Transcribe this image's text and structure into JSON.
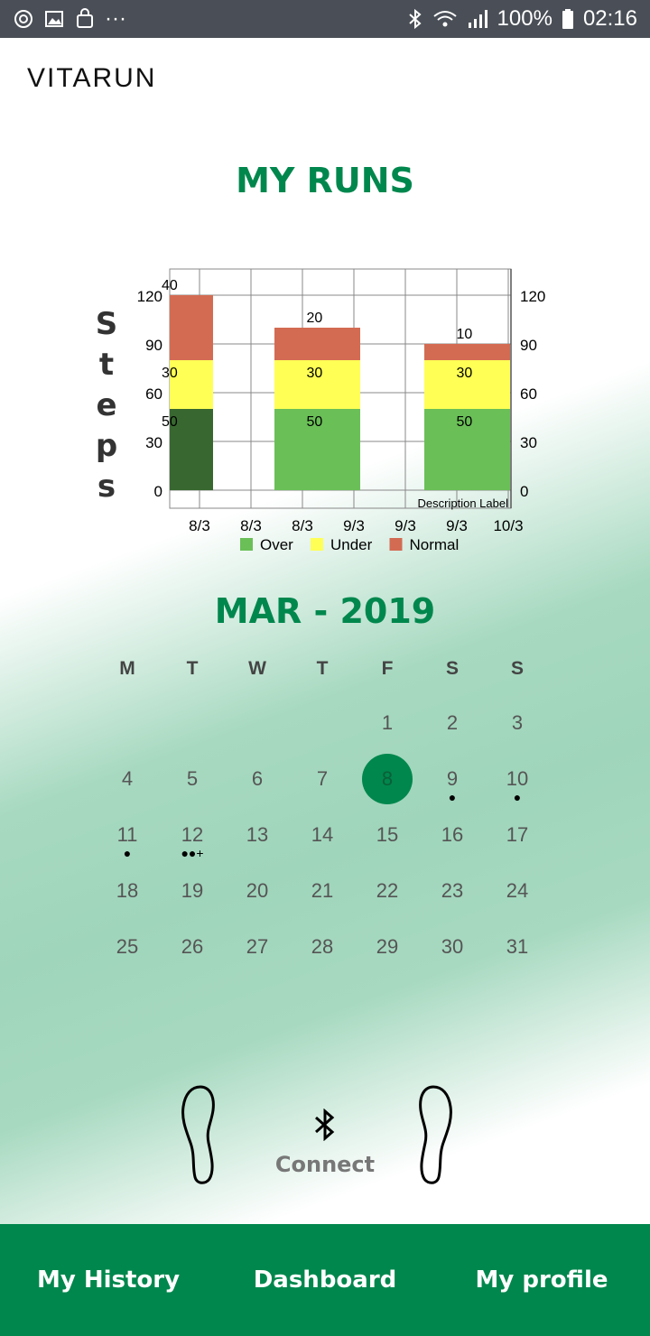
{
  "status_bar": {
    "dots": "···",
    "battery": "100%",
    "time": "02:16",
    "icons": [
      "sync-icon",
      "image-icon",
      "bag-icon",
      "bluetooth-icon",
      "wifi-icon",
      "signal-icon",
      "battery-icon"
    ]
  },
  "app": {
    "logo": "VITARUN"
  },
  "runs": {
    "title": "MY RUNS"
  },
  "chart_data": {
    "type": "bar",
    "stacked": true,
    "ylabel": "Steps",
    "ylim": [
      0,
      120
    ],
    "yticks": [
      0,
      30,
      60,
      90,
      120
    ],
    "xtick_labels": [
      "8/3",
      "8/3",
      "8/3",
      "9/3",
      "9/3",
      "9/3",
      "10/3"
    ],
    "description": "Description Label",
    "bars": [
      {
        "index": 0,
        "segments": [
          50,
          30,
          40
        ],
        "dark_green": true
      },
      {
        "index": 2,
        "segments": [
          50,
          30,
          20
        ]
      },
      {
        "index": 5,
        "segments": [
          50,
          30,
          10
        ]
      }
    ],
    "series": [
      {
        "name": "Over",
        "color": "#6abf57"
      },
      {
        "name": "Under",
        "color": "#ffff55"
      },
      {
        "name": "Normal",
        "color": "#d36b52"
      }
    ],
    "grid": true,
    "legend_position": "bottom"
  },
  "calendar": {
    "month_title": "MAR - 2019",
    "weekdays": [
      "M",
      "T",
      "W",
      "T",
      "F",
      "S",
      "S"
    ],
    "weeks": [
      [
        null,
        null,
        null,
        null,
        "1",
        "2",
        "3"
      ],
      [
        "4",
        "5",
        "6",
        "7",
        "8",
        "9",
        "10"
      ],
      [
        "11",
        "12",
        "13",
        "14",
        "15",
        "16",
        "17"
      ],
      [
        "18",
        "19",
        "20",
        "21",
        "22",
        "23",
        "24"
      ],
      [
        "25",
        "26",
        "27",
        "28",
        "29",
        "30",
        "31"
      ]
    ],
    "selected_day": "8",
    "markers": {
      "9": "●",
      "10": "●",
      "11": "●",
      "12": "●●+"
    }
  },
  "device": {
    "connect_label": "Connect"
  },
  "nav": {
    "history": "My History",
    "dashboard": "Dashboard",
    "profile": "My profile"
  },
  "colors": {
    "brand_green": "#00874d",
    "status_bar": "#4a4f57"
  }
}
